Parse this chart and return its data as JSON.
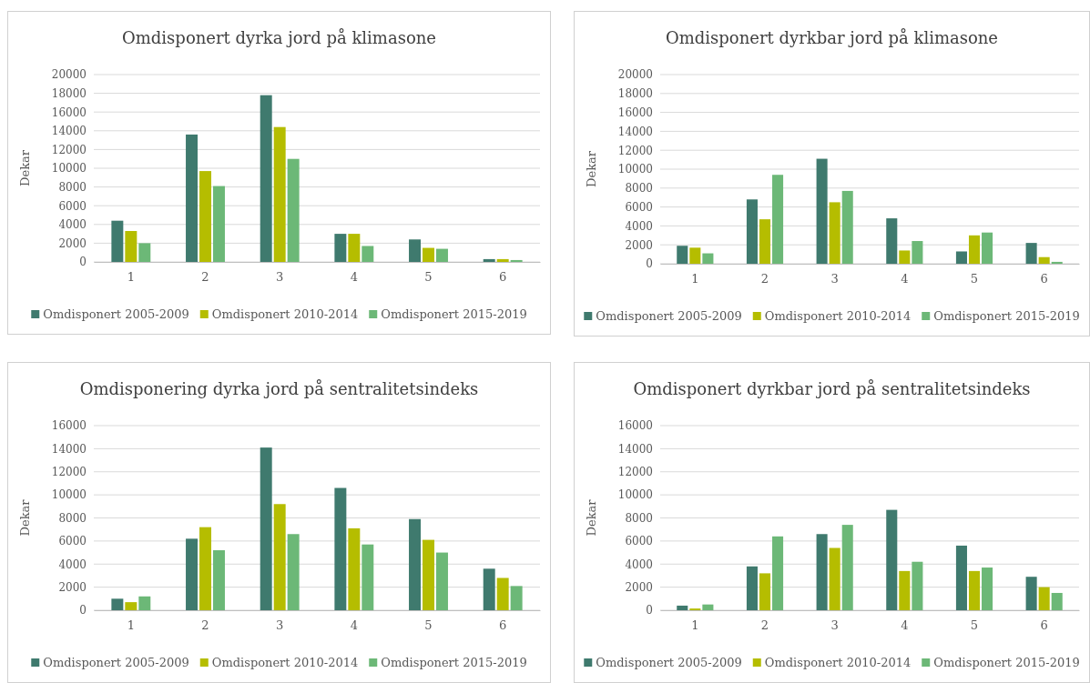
{
  "chart_data": [
    {
      "type": "bar",
      "title": "Omdisponert dyrka jord på klimasone",
      "ylabel": "Dekar",
      "categories": [
        "1",
        "2",
        "3",
        "4",
        "5",
        "6"
      ],
      "ylim": [
        0,
        20000
      ],
      "yticks": [
        0,
        2000,
        4000,
        6000,
        8000,
        10000,
        12000,
        14000,
        16000,
        18000,
        20000
      ],
      "grid": "y",
      "legend": "bottom",
      "series": [
        {
          "name": "Omdisponert 2005-2009",
          "color": "#3f7a6e",
          "values": [
            4400,
            13600,
            17800,
            3000,
            2400,
            300
          ]
        },
        {
          "name": "Omdisponert 2010-2014",
          "color": "#b5bd00",
          "values": [
            3300,
            9700,
            14400,
            3000,
            1500,
            300
          ]
        },
        {
          "name": "Omdisponert 2015-2019",
          "color": "#6cb877",
          "values": [
            2000,
            8100,
            11000,
            1700,
            1400,
            200
          ]
        }
      ]
    },
    {
      "type": "bar",
      "title": "Omdisponert dyrkbar jord på klimasone",
      "ylabel": "Dekar",
      "categories": [
        "1",
        "2",
        "3",
        "4",
        "5",
        "6"
      ],
      "ylim": [
        0,
        20000
      ],
      "yticks": [
        0,
        2000,
        4000,
        6000,
        8000,
        10000,
        12000,
        14000,
        16000,
        18000,
        20000
      ],
      "grid": "y",
      "legend": "bottom",
      "series": [
        {
          "name": "Omdisponert 2005-2009",
          "color": "#3f7a6e",
          "values": [
            1900,
            6800,
            11100,
            4800,
            1300,
            2200
          ]
        },
        {
          "name": "Omdisponert 2010-2014",
          "color": "#b5bd00",
          "values": [
            1700,
            4700,
            6500,
            1400,
            3000,
            700
          ]
        },
        {
          "name": "Omdisponert 2015-2019",
          "color": "#6cb877",
          "values": [
            1100,
            9400,
            7700,
            2400,
            3300,
            200
          ]
        }
      ]
    },
    {
      "type": "bar",
      "title": "Omdisponering dyrka jord på sentralitetsindeks",
      "ylabel": "Dekar",
      "categories": [
        "1",
        "2",
        "3",
        "4",
        "5",
        "6"
      ],
      "ylim": [
        0,
        16000
      ],
      "yticks": [
        0,
        2000,
        4000,
        6000,
        8000,
        10000,
        12000,
        14000,
        16000
      ],
      "grid": "y",
      "legend": "bottom",
      "series": [
        {
          "name": "Omdisponert 2005-2009",
          "color": "#3f7a6e",
          "values": [
            1000,
            6200,
            14100,
            10600,
            7900,
            3600
          ]
        },
        {
          "name": "Omdisponert 2010-2014",
          "color": "#b5bd00",
          "values": [
            700,
            7200,
            9200,
            7100,
            6100,
            2800
          ]
        },
        {
          "name": "Omdisponert 2015-2019",
          "color": "#6cb877",
          "values": [
            1200,
            5200,
            6600,
            5700,
            5000,
            2100
          ]
        }
      ]
    },
    {
      "type": "bar",
      "title": "Omdisponert dyrkbar jord på sentralitetsindeks",
      "ylabel": "Dekar",
      "categories": [
        "1",
        "2",
        "3",
        "4",
        "5",
        "6"
      ],
      "ylim": [
        0,
        16000
      ],
      "yticks": [
        0,
        2000,
        4000,
        6000,
        8000,
        10000,
        12000,
        14000,
        16000
      ],
      "grid": "y",
      "legend": "bottom",
      "series": [
        {
          "name": "Omdisponert 2005-2009",
          "color": "#3f7a6e",
          "values": [
            400,
            3800,
            6600,
            8700,
            5600,
            2900
          ]
        },
        {
          "name": "Omdisponert 2010-2014",
          "color": "#b5bd00",
          "values": [
            150,
            3200,
            5400,
            3400,
            3400,
            2000
          ]
        },
        {
          "name": "Omdisponert 2015-2019",
          "color": "#6cb877",
          "values": [
            500,
            6400,
            7400,
            4200,
            3700,
            1500
          ]
        }
      ]
    }
  ]
}
